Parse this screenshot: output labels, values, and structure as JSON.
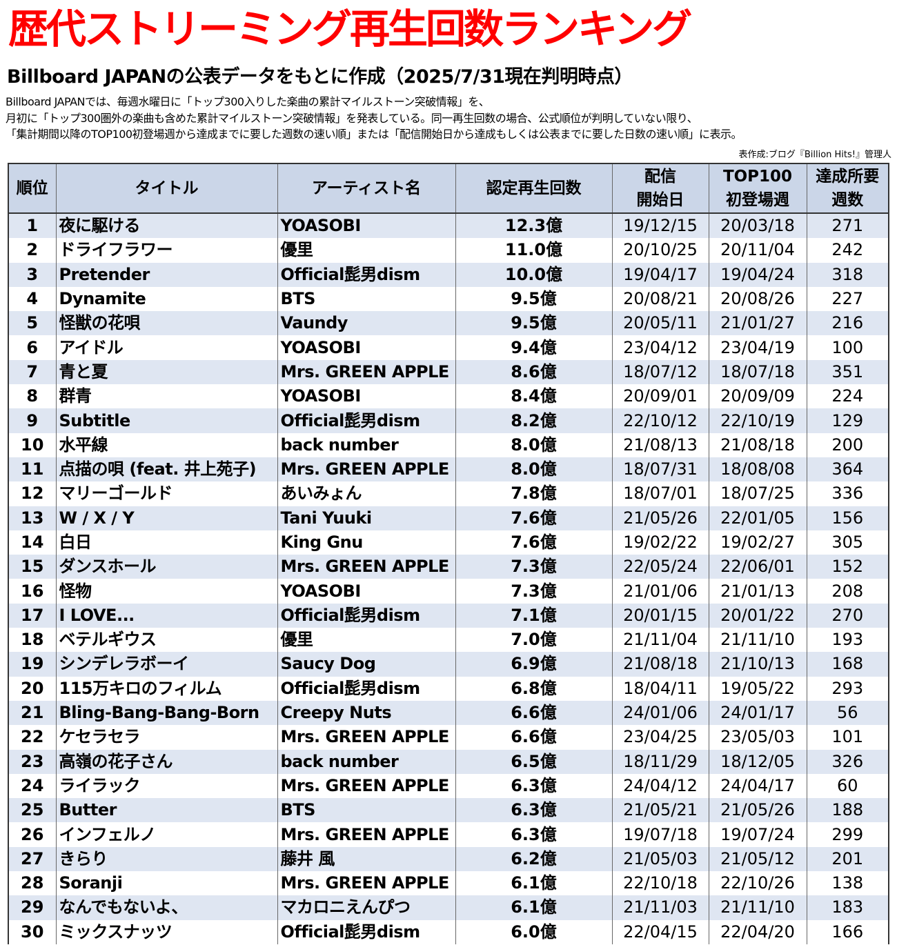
{
  "header": {
    "title": "歴代ストリーミング再生回数ランキング",
    "subtitle": "Billboard JAPANの公表データをもとに作成（2025/7/31現在判明時点）",
    "notes": [
      "Billboard JAPANでは、毎週水曜日に「トップ300入りした楽曲の累計マイルストーン突破情報」を、",
      "月初に「トップ300圏外の楽曲も含めた累計マイルストーン突破情報」を発表している。同一再生回数の場合、公式順位が判明していない限り、",
      "「集計期間以降のTOP100初登場週から達成までに要した週数の速い順」または「配信開始日から達成もしくは公表までに要した日数の速い順」に表示。"
    ],
    "credit": "表作成:ブログ『Billion Hits!』管理人"
  },
  "table": {
    "headers": {
      "rank": "順位",
      "title": "タイトル",
      "artist": "アーティスト名",
      "plays": "認定再生回数",
      "start_line1": "配信",
      "start_line2": "開始日",
      "debut_line1": "TOP100",
      "debut_line2": "初登場週",
      "weeks_line1": "達成所要",
      "weeks_line2": "週数"
    },
    "rows": [
      {
        "rank": "1",
        "title": "夜に駆ける",
        "artist": "YOASOBI",
        "plays": "12.3億",
        "start": "19/12/15",
        "debut": "20/03/18",
        "weeks": "271"
      },
      {
        "rank": "2",
        "title": "ドライフラワー",
        "artist": "優里",
        "plays": "11.0億",
        "start": "20/10/25",
        "debut": "20/11/04",
        "weeks": "242"
      },
      {
        "rank": "3",
        "title": "Pretender",
        "artist": "Official髭男dism",
        "plays": "10.0億",
        "start": "19/04/17",
        "debut": "19/04/24",
        "weeks": "318"
      },
      {
        "rank": "4",
        "title": "Dynamite",
        "artist": "BTS",
        "plays": "9.5億",
        "start": "20/08/21",
        "debut": "20/08/26",
        "weeks": "227"
      },
      {
        "rank": "5",
        "title": "怪獣の花唄",
        "artist": "Vaundy",
        "plays": "9.5億",
        "start": "20/05/11",
        "debut": "21/01/27",
        "weeks": "216"
      },
      {
        "rank": "6",
        "title": "アイドル",
        "artist": "YOASOBI",
        "plays": "9.4億",
        "start": "23/04/12",
        "debut": "23/04/19",
        "weeks": "100"
      },
      {
        "rank": "7",
        "title": "青と夏",
        "artist": "Mrs. GREEN APPLE",
        "plays": "8.6億",
        "start": "18/07/12",
        "debut": "18/07/18",
        "weeks": "351"
      },
      {
        "rank": "8",
        "title": "群青",
        "artist": "YOASOBI",
        "plays": "8.4億",
        "start": "20/09/01",
        "debut": "20/09/09",
        "weeks": "224"
      },
      {
        "rank": "9",
        "title": "Subtitle",
        "artist": "Official髭男dism",
        "plays": "8.2億",
        "start": "22/10/12",
        "debut": "22/10/19",
        "weeks": "129"
      },
      {
        "rank": "10",
        "title": "水平線",
        "artist": "back number",
        "plays": "8.0億",
        "start": "21/08/13",
        "debut": "21/08/18",
        "weeks": "200"
      },
      {
        "rank": "11",
        "title": "点描の唄 (feat. 井上苑子)",
        "artist": "Mrs. GREEN APPLE",
        "plays": "8.0億",
        "start": "18/07/31",
        "debut": "18/08/08",
        "weeks": "364"
      },
      {
        "rank": "12",
        "title": "マリーゴールド",
        "artist": "あいみょん",
        "plays": "7.8億",
        "start": "18/07/01",
        "debut": "18/07/25",
        "weeks": "336"
      },
      {
        "rank": "13",
        "title": "W / X / Y",
        "artist": "Tani Yuuki",
        "plays": "7.6億",
        "start": "21/05/26",
        "debut": "22/01/05",
        "weeks": "156"
      },
      {
        "rank": "14",
        "title": "白日",
        "artist": "King Gnu",
        "plays": "7.6億",
        "start": "19/02/22",
        "debut": "19/02/27",
        "weeks": "305"
      },
      {
        "rank": "15",
        "title": "ダンスホール",
        "artist": "Mrs. GREEN APPLE",
        "plays": "7.3億",
        "start": "22/05/24",
        "debut": "22/06/01",
        "weeks": "152"
      },
      {
        "rank": "16",
        "title": "怪物",
        "artist": "YOASOBI",
        "plays": "7.3億",
        "start": "21/01/06",
        "debut": "21/01/13",
        "weeks": "208"
      },
      {
        "rank": "17",
        "title": "I LOVE...",
        "artist": "Official髭男dism",
        "plays": "7.1億",
        "start": "20/01/15",
        "debut": "20/01/22",
        "weeks": "270"
      },
      {
        "rank": "18",
        "title": "ベテルギウス",
        "artist": "優里",
        "plays": "7.0億",
        "start": "21/11/04",
        "debut": "21/11/10",
        "weeks": "193"
      },
      {
        "rank": "19",
        "title": "シンデレラボーイ",
        "artist": "Saucy Dog",
        "plays": "6.9億",
        "start": "21/08/18",
        "debut": "21/10/13",
        "weeks": "168"
      },
      {
        "rank": "20",
        "title": "115万キロのフィルム",
        "artist": "Official髭男dism",
        "plays": "6.8億",
        "start": "18/04/11",
        "debut": "19/05/22",
        "weeks": "293"
      },
      {
        "rank": "21",
        "title": "Bling-Bang-Bang-Born",
        "artist": "Creepy Nuts",
        "plays": "6.6億",
        "start": "24/01/06",
        "debut": "24/01/17",
        "weeks": "56"
      },
      {
        "rank": "22",
        "title": "ケセラセラ",
        "artist": "Mrs. GREEN APPLE",
        "plays": "6.6億",
        "start": "23/04/25",
        "debut": "23/05/03",
        "weeks": "101"
      },
      {
        "rank": "23",
        "title": "高嶺の花子さん",
        "artist": "back number",
        "plays": "6.5億",
        "start": "18/11/29",
        "debut": "18/12/05",
        "weeks": "326"
      },
      {
        "rank": "24",
        "title": "ライラック",
        "artist": "Mrs. GREEN APPLE",
        "plays": "6.3億",
        "start": "24/04/12",
        "debut": "24/04/17",
        "weeks": "60"
      },
      {
        "rank": "25",
        "title": "Butter",
        "artist": "BTS",
        "plays": "6.3億",
        "start": "21/05/21",
        "debut": "21/05/26",
        "weeks": "188"
      },
      {
        "rank": "26",
        "title": "インフェルノ",
        "artist": "Mrs. GREEN APPLE",
        "plays": "6.3億",
        "start": "19/07/18",
        "debut": "19/07/24",
        "weeks": "299"
      },
      {
        "rank": "27",
        "title": "きらり",
        "artist": "藤井 風",
        "plays": "6.2億",
        "start": "21/05/03",
        "debut": "21/05/12",
        "weeks": "201"
      },
      {
        "rank": "28",
        "title": "Soranji",
        "artist": "Mrs. GREEN APPLE",
        "plays": "6.1億",
        "start": "22/10/18",
        "debut": "22/10/26",
        "weeks": "138"
      },
      {
        "rank": "29",
        "title": "なんでもないよ、",
        "artist": "マカロニえんぴつ",
        "plays": "6.1億",
        "start": "21/11/03",
        "debut": "21/11/10",
        "weeks": "183"
      },
      {
        "rank": "30",
        "title": "ミックスナッツ",
        "artist": "Official髭男dism",
        "plays": "6.0億",
        "start": "22/04/15",
        "debut": "22/04/20",
        "weeks": "166"
      }
    ]
  },
  "colors": {
    "title_red": "#ff0000",
    "header_fill": "#cbd6e8",
    "stripe_fill": "#dfe6f2"
  }
}
